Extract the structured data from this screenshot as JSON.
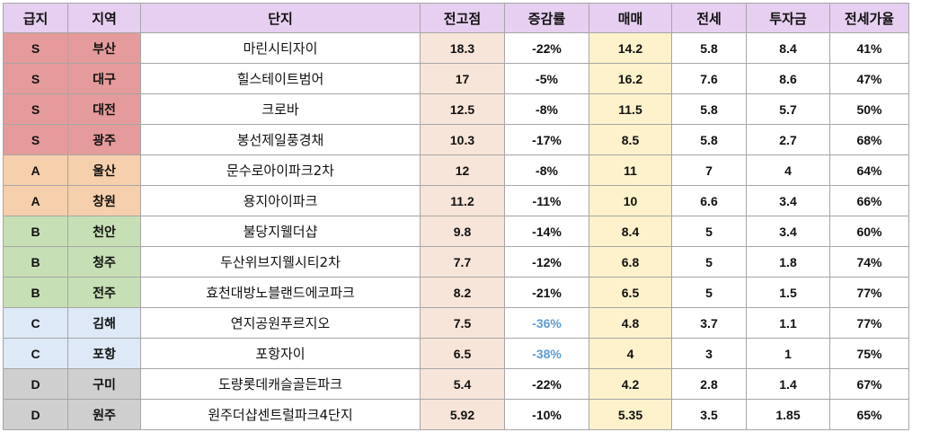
{
  "table": {
    "headers": [
      "급지",
      "지역",
      "단지",
      "전고점",
      "증감률",
      "매매",
      "전세",
      "투자금",
      "전세가율"
    ],
    "rows": [
      {
        "grade": "S",
        "region": "부산",
        "name": "마린시티자이",
        "peak": "18.3",
        "change": "-22%",
        "trade": "14.2",
        "jeonse": "5.8",
        "invest": "8.4",
        "ratio": "41%"
      },
      {
        "grade": "S",
        "region": "대구",
        "name": "힐스테이트범어",
        "peak": "17",
        "change": "-5%",
        "trade": "16.2",
        "jeonse": "7.6",
        "invest": "8.6",
        "ratio": "47%"
      },
      {
        "grade": "S",
        "region": "대전",
        "name": "크로바",
        "peak": "12.5",
        "change": "-8%",
        "trade": "11.5",
        "jeonse": "5.8",
        "invest": "5.7",
        "ratio": "50%"
      },
      {
        "grade": "S",
        "region": "광주",
        "name": "봉선제일풍경채",
        "peak": "10.3",
        "change": "-17%",
        "trade": "8.5",
        "jeonse": "5.8",
        "invest": "2.7",
        "ratio": "68%"
      },
      {
        "grade": "A",
        "region": "울산",
        "name": "문수로아이파크2차",
        "peak": "12",
        "change": "-8%",
        "trade": "11",
        "jeonse": "7",
        "invest": "4",
        "ratio": "64%"
      },
      {
        "grade": "A",
        "region": "창원",
        "name": "용지아이파크",
        "peak": "11.2",
        "change": "-11%",
        "trade": "10",
        "jeonse": "6.6",
        "invest": "3.4",
        "ratio": "66%"
      },
      {
        "grade": "B",
        "region": "천안",
        "name": "불당지웰더샵",
        "peak": "9.8",
        "change": "-14%",
        "trade": "8.4",
        "jeonse": "5",
        "invest": "3.4",
        "ratio": "60%"
      },
      {
        "grade": "B",
        "region": "청주",
        "name": "두산위브지웰시티2차",
        "peak": "7.7",
        "change": "-12%",
        "trade": "6.8",
        "jeonse": "5",
        "invest": "1.8",
        "ratio": "74%"
      },
      {
        "grade": "B",
        "region": "전주",
        "name": "효천대방노블랜드에코파크",
        "peak": "8.2",
        "change": "-21%",
        "trade": "6.5",
        "jeonse": "5",
        "invest": "1.5",
        "ratio": "77%"
      },
      {
        "grade": "C",
        "region": "김해",
        "name": "연지공원푸르지오",
        "peak": "7.5",
        "change": "-36%",
        "trade": "4.8",
        "jeonse": "3.7",
        "invest": "1.1",
        "ratio": "77%"
      },
      {
        "grade": "C",
        "region": "포항",
        "name": "포항자이",
        "peak": "6.5",
        "change": "-38%",
        "trade": "4",
        "jeonse": "3",
        "invest": "1",
        "ratio": "75%"
      },
      {
        "grade": "D",
        "region": "구미",
        "name": "도량롯데캐슬골든파크",
        "peak": "5.4",
        "change": "-22%",
        "trade": "4.2",
        "jeonse": "2.8",
        "invest": "1.4",
        "ratio": "67%"
      },
      {
        "grade": "D",
        "region": "원주",
        "name": "원주더샵센트럴파크4단지",
        "peak": "5.92",
        "change": "-10%",
        "trade": "5.35",
        "jeonse": "3.5",
        "invest": "1.85",
        "ratio": "65%"
      }
    ],
    "grade_colors": {
      "S": "#e59b9b",
      "A": "#f6cfac",
      "B": "#c7dfb5",
      "C": "#dde9f6",
      "D": "#cfcfcf"
    },
    "highlight_change_color": "#5b9bd5",
    "highlight_change_rows": [
      9,
      10
    ],
    "header_color": "#e6cff0",
    "peak_column_color": "#f8e5d9",
    "trade_column_color": "#fdf2cc"
  }
}
